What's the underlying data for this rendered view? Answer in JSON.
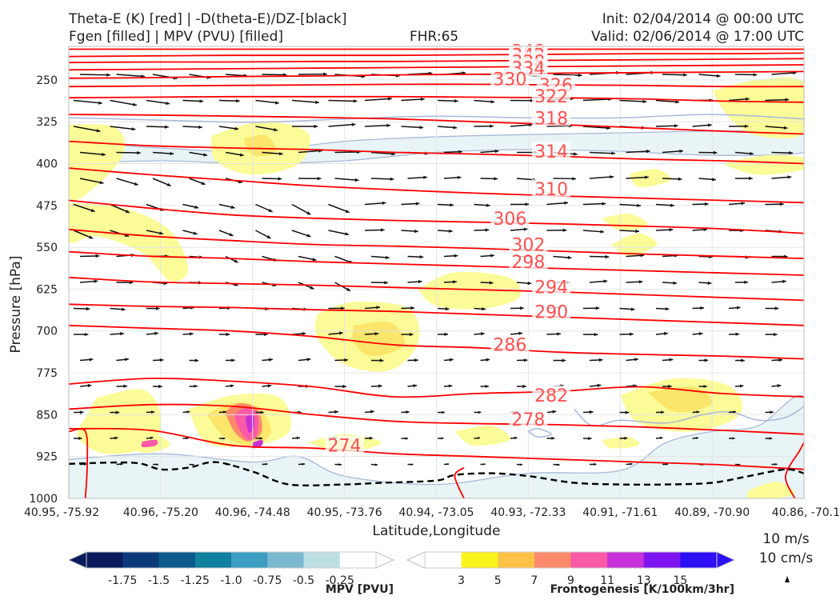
{
  "header": {
    "left_line1": "Theta-E (K) [red] | -D(theta-E)/DZ-[black]",
    "left_line2": "Fgen [filled] | MPV (PVU) [filled]",
    "center": "FHR:65",
    "right_line1": "Init: 02/04/2014 @ 00:00 UTC",
    "right_line2": "Valid: 02/06/2014 @ 17:00 UTC"
  },
  "reference_wind": {
    "line1": "10 m/s",
    "line2": "10 cm/s"
  },
  "colors": {
    "theta_e": "#ff0000",
    "theta_e_label": "#ff5050",
    "mpv_contour": "#a9b8d8",
    "mpv_fill_light": "#e8f4f6",
    "fgen_3": "#fbfb97",
    "fgen_5": "#fbe56a",
    "vectors": "#111111",
    "dashed": "#000000"
  },
  "chart_data": {
    "type": "cross-section",
    "xlabel": "Latitude,Longitude",
    "ylabel": "Pressure [hPa]",
    "x_ticks": [
      "40.95, -75.92",
      "40.96, -75.20",
      "40.96, -74.48",
      "40.95, -73.76",
      "40.94, -73.05",
      "40.93, -72.33",
      "40.91, -71.61",
      "40.89, -70.90",
      "40.86, -70.1"
    ],
    "y_ticks": [
      250,
      325,
      400,
      475,
      550,
      625,
      700,
      775,
      850,
      925,
      1000
    ],
    "ylim": [
      1000,
      190
    ],
    "theta_e_contours": [
      {
        "label": 348,
        "y": [
          195,
          195,
          195,
          195,
          195,
          195,
          195,
          195,
          195,
          195
        ]
      },
      {
        "label": 342,
        "y": [
          208,
          207,
          206,
          206,
          206,
          205,
          204,
          203,
          203,
          202
        ]
      },
      {
        "label": 338,
        "y": [
          219,
          218,
          218,
          217,
          217,
          216,
          215,
          214,
          213,
          212
        ]
      },
      {
        "label": 334,
        "y": [
          232,
          231,
          230,
          229,
          228,
          227,
          226,
          225,
          224,
          223
        ]
      },
      {
        "label": 330,
        "y": [
          247,
          246,
          244,
          243,
          241,
          240,
          238,
          237,
          236,
          235
        ]
      },
      {
        "label": 326,
        "y": [
          262,
          261,
          260,
          259,
          258,
          258,
          259,
          260,
          262,
          262
        ]
      },
      {
        "label": 322,
        "y": [
          282,
          281,
          280,
          280,
          280,
          281,
          282,
          284,
          288,
          290
        ]
      },
      {
        "label": 318,
        "y": [
          312,
          313,
          315,
          317,
          320,
          325,
          330,
          336,
          342,
          347
        ]
      },
      {
        "label": 314,
        "y": [
          360,
          368,
          372,
          375,
          380,
          383,
          387,
          392,
          395,
          400
        ]
      },
      {
        "label": 310,
        "y": [
          408,
          420,
          430,
          440,
          447,
          453,
          458,
          462,
          466,
          470
        ]
      },
      {
        "label": 306,
        "y": [
          466,
          480,
          492,
          498,
          502,
          505,
          508,
          512,
          517,
          525
        ]
      },
      {
        "label": 302,
        "y": [
          518,
          530,
          538,
          545,
          548,
          552,
          557,
          562,
          566,
          570
        ]
      },
      {
        "label": 298,
        "y": [
          558,
          566,
          570,
          576,
          580,
          584,
          588,
          592,
          596,
          600
        ]
      },
      {
        "label": 294,
        "y": [
          604,
          612,
          615,
          618,
          622,
          626,
          630,
          635,
          640,
          645
        ]
      },
      {
        "label": 290,
        "y": [
          652,
          656,
          658,
          662,
          665,
          670,
          675,
          680,
          685,
          690
        ]
      },
      {
        "label": 286,
        "y": [
          690,
          695,
          700,
          710,
          725,
          730,
          738,
          742,
          745,
          750
        ]
      },
      {
        "label": 282,
        "y": [
          795,
          785,
          790,
          800,
          818,
          812,
          808,
          800,
          812,
          818
        ]
      },
      {
        "label": 278,
        "y": [
          840,
          832,
          835,
          850,
          862,
          866,
          868,
          872,
          878,
          885
        ]
      },
      {
        "label": 274,
        "y": [
          875,
          878,
          905,
          910,
          920,
          925,
          930,
          935,
          940,
          948
        ]
      }
    ],
    "theta_e_label_positions": [
      {
        "label": 348,
        "x": 5.0,
        "p": 198
      },
      {
        "label": 342,
        "x": 5.0,
        "p": 205
      },
      {
        "label": 338,
        "x": 5.0,
        "p": 217
      },
      {
        "label": 334,
        "x": 5.0,
        "p": 229
      },
      {
        "label": 330,
        "x": 4.8,
        "p": 248
      },
      {
        "label": 326,
        "x": 5.3,
        "p": 259
      },
      {
        "label": 322,
        "x": 5.25,
        "p": 279
      },
      {
        "label": 318,
        "x": 5.25,
        "p": 318
      },
      {
        "label": 314,
        "x": 5.25,
        "p": 378
      },
      {
        "label": 310,
        "x": 5.25,
        "p": 445
      },
      {
        "label": 306,
        "x": 4.8,
        "p": 498
      },
      {
        "label": 302,
        "x": 5.0,
        "p": 545
      },
      {
        "label": 298,
        "x": 5.0,
        "p": 576
      },
      {
        "label": 294,
        "x": 5.25,
        "p": 621
      },
      {
        "label": 290,
        "x": 5.25,
        "p": 665
      },
      {
        "label": 286,
        "x": 4.8,
        "p": 724
      },
      {
        "label": 282,
        "x": 5.25,
        "p": 815
      },
      {
        "label": 278,
        "x": 5.0,
        "p": 858
      },
      {
        "label": 274,
        "x": 3.0,
        "p": 905
      }
    ],
    "mpv_colorbar": {
      "title": "MPV [PVU]",
      "ticks": [
        "-1.75",
        "-1.5",
        "-1.25",
        "-1.0",
        "-0.75",
        "-0.5",
        "-0.25"
      ],
      "colors": [
        "#071b5c",
        "#0a3a7a",
        "#0b5a8a",
        "#10809f",
        "#3a9fc0",
        "#7ab8d0",
        "#bcdfe6",
        "#ffffff"
      ]
    },
    "fgen_colorbar": {
      "title": "Frontogenesis [K/100km/3hr]",
      "ticks": [
        "3",
        "5",
        "7",
        "9",
        "11",
        "13",
        "15"
      ],
      "colors": [
        "#ffffff",
        "#fbf31e",
        "#fcc247",
        "#fc8a6a",
        "#fc5aa6",
        "#c531d6",
        "#7d15f0",
        "#2b0ff5"
      ]
    }
  }
}
